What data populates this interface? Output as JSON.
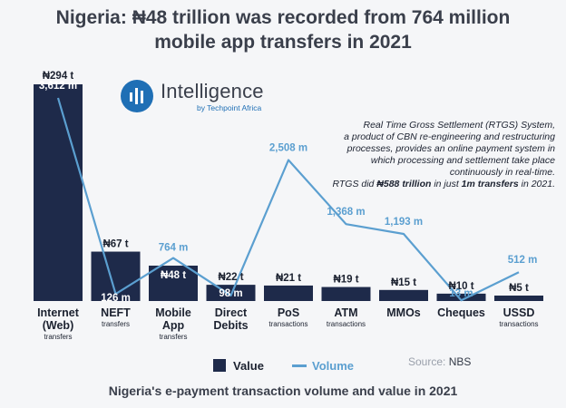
{
  "title_line1": "Nigeria: ₦48 trillion was recorded from 764 million",
  "title_line2": "mobile app transfers in 2021",
  "logo": {
    "name": "Intelligence",
    "tagline": "by Techpoint Africa"
  },
  "note": {
    "line1": "Real Time Gross Settlement (RTGS) System,",
    "line2": "a product of CBN re-engineering and restructuring",
    "line3": "processes, provides an online payment system in",
    "line4": "which processing and settlement take place",
    "line5": "continuously in real-time.",
    "rtgs_prefix": "RTGS did ",
    "rtgs_value": "₦588 trillion",
    "rtgs_middle": " in just ",
    "rtgs_volume": "1m transfers",
    "rtgs_suffix": " in 2021."
  },
  "legend": {
    "value_label": "Value",
    "volume_label": "Volume"
  },
  "source": {
    "prefix": "Source: ",
    "name": "NBS"
  },
  "subtitle": "Nigeria's e-payment transaction volume and value in 2021",
  "colors": {
    "bar": "#1e2a4a",
    "line": "#5b9fd0"
  },
  "chart_data": {
    "type": "bar",
    "categories": [
      {
        "main": [
          "Internet",
          "(Web)"
        ],
        "sub": "transfers"
      },
      {
        "main": [
          "NEFT"
        ],
        "sub": "transfers"
      },
      {
        "main": [
          "Mobile",
          "App"
        ],
        "sub": "transfers"
      },
      {
        "main": [
          "Direct",
          "Debits"
        ],
        "sub": ""
      },
      {
        "main": [
          "PoS"
        ],
        "sub": "transactions"
      },
      {
        "main": [
          "ATM"
        ],
        "sub": "transactions"
      },
      {
        "main": [
          "MMOs"
        ],
        "sub": ""
      },
      {
        "main": [
          "Cheques"
        ],
        "sub": ""
      },
      {
        "main": [
          "USSD"
        ],
        "sub": "transactions"
      }
    ],
    "series": [
      {
        "name": "Value",
        "type": "bar",
        "unit": "₦ trillion",
        "values": [
          294,
          67,
          48,
          22,
          21,
          19,
          15,
          10,
          5
        ],
        "labels": [
          "₦294 t",
          "₦67 t",
          "₦48 t",
          "₦22 t",
          "₦21 t",
          "₦19 t",
          "₦15 t",
          "₦10 t",
          "₦5 t"
        ]
      },
      {
        "name": "Volume",
        "type": "line",
        "unit": "million",
        "values": [
          3612,
          126,
          764,
          98,
          2508,
          1368,
          1193,
          13,
          512
        ],
        "labels": [
          "3,612 m",
          "126 m",
          "764 m",
          "98 m",
          "2,508 m",
          "1,368 m",
          "1,193 m",
          "13 m",
          "512 m"
        ]
      }
    ],
    "value_axis_max": 294,
    "volume_axis_max": 3612,
    "grid": false
  }
}
